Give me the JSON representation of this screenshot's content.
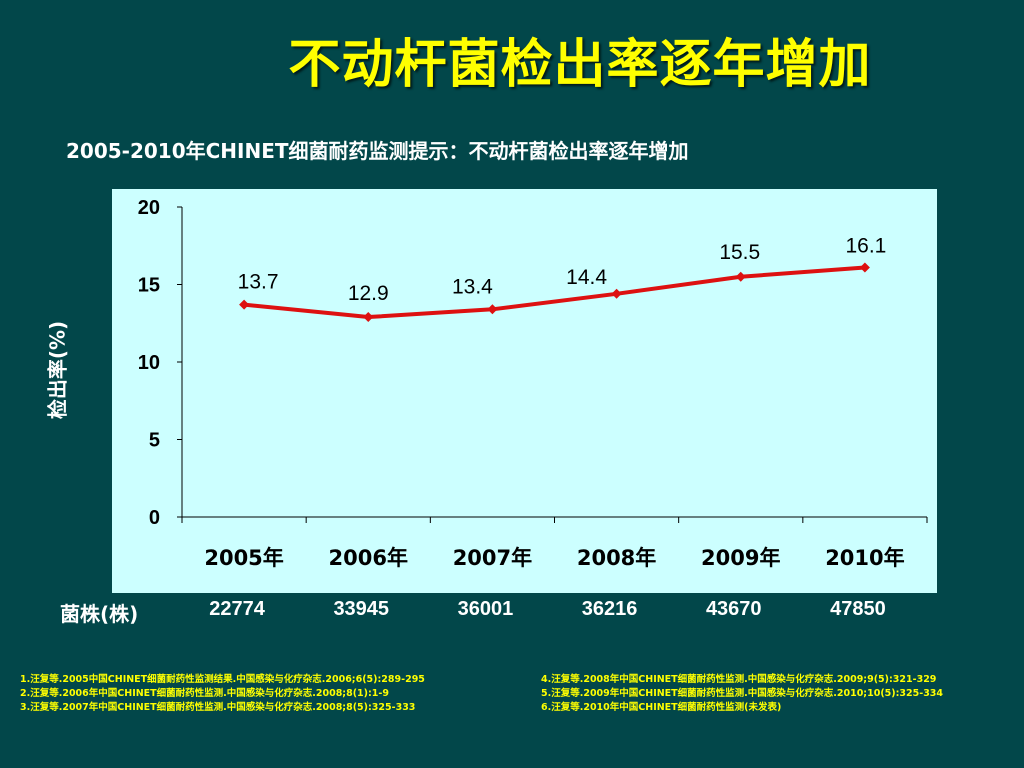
{
  "title": "不动杆菌检出率逐年增加",
  "subtitle": "2005-2010年CHINET细菌耐药监测提示：不动杆菌检出率逐年增加",
  "colors": {
    "background": "#02474a",
    "title": "#ffff00",
    "plot_background": "#ccffff",
    "line": "#dd1111",
    "references": "#ffff00"
  },
  "chart_data": {
    "type": "line",
    "categories": [
      "2005年",
      "2006年",
      "2007年",
      "2008年",
      "2009年",
      "2010年"
    ],
    "series": [
      {
        "values": [
          13.7,
          12.9,
          13.4,
          14.4,
          15.5,
          16.1
        ]
      }
    ],
    "data_labels": [
      "13.7",
      "12.9",
      "13.4",
      "14.4",
      "15.5",
      "16.1"
    ],
    "ylabel": "检出率(%)",
    "xlabel": "",
    "ylim": [
      0,
      20
    ],
    "yticks": [
      0,
      5,
      10,
      15,
      20
    ],
    "grid": false,
    "legend": "none"
  },
  "counts": {
    "label": "菌株(株)",
    "values": [
      "22774",
      "33945",
      "36001",
      "36216",
      "43670",
      "47850"
    ]
  },
  "references": {
    "left": [
      "1.汪复等.2005中国CHINET细菌耐药性监测结果.中国感染与化疗杂志.2006;6(5):289-295",
      "2.汪复等.2006年中国CHINET细菌耐药性监测.中国感染与化疗杂志.2008;8(1):1-9",
      "3.汪复等.2007年中国CHINET细菌耐药性监测.中国感染与化疗杂志.2008;8(5):325-333"
    ],
    "right": [
      "4.汪复等.2008年中国CHINET细菌耐药性监测.中国感染与化疗杂志.2009;9(5):321-329",
      "5.汪复等.2009年中国CHINET细菌耐药性监测.中国感染与化疗杂志.2010;10(5):325-334",
      "6.汪复等.2010年中国CHINET细菌耐药性监测(未发表)"
    ]
  }
}
